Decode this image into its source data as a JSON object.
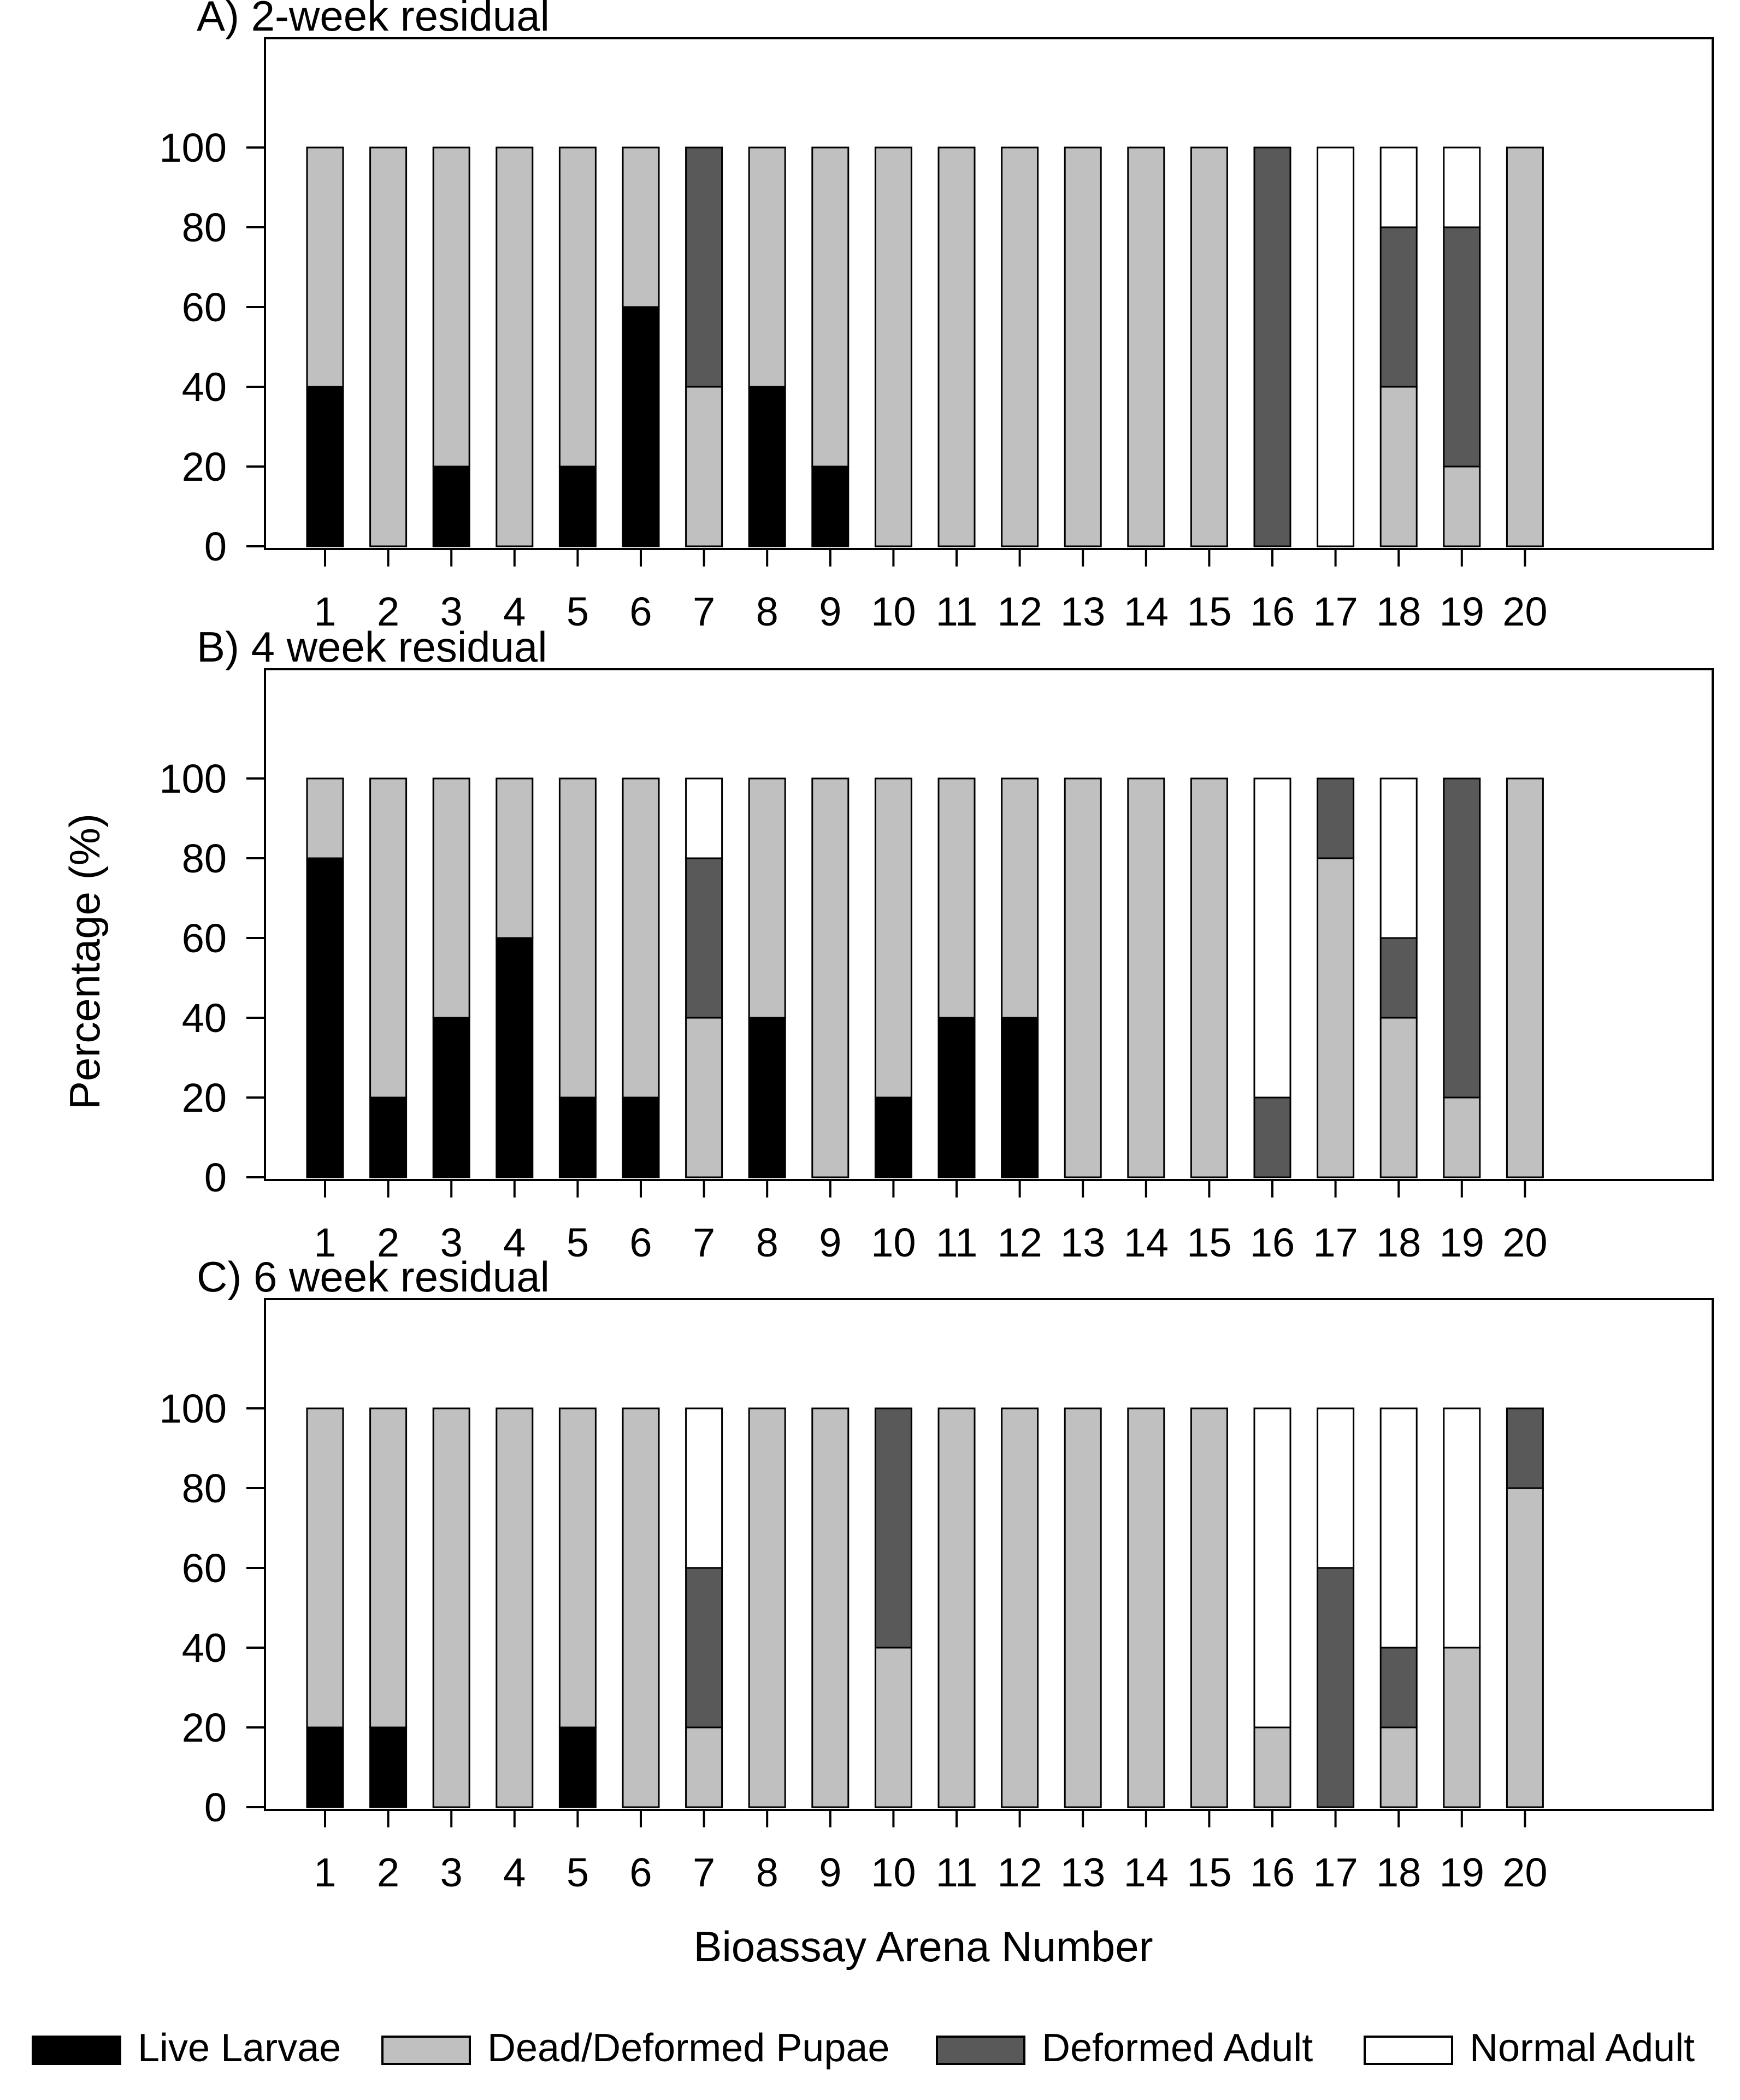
{
  "y_axis_label": "Percentage (%)",
  "x_axis_label": "Bioassay Arena Number",
  "colors": {
    "Live Larvae": "#000000",
    "Dead/Deformed Pupae": "#c0c0c0",
    "Deformed Adult": "#595959",
    "Normal Adult": "#ffffff"
  },
  "legend": {
    "placement": "bottom",
    "items": [
      "Live Larvae",
      "Dead/Deformed Pupae",
      "Deformed Adult",
      "Normal Adult"
    ]
  },
  "chart_data": [
    {
      "type": "bar",
      "stacked": true,
      "title": "A) 2-week residual",
      "categories": [
        "1",
        "2",
        "3",
        "4",
        "5",
        "6",
        "7",
        "8",
        "9",
        "10",
        "11",
        "12",
        "13",
        "14",
        "15",
        "16",
        "17",
        "18",
        "19",
        "20"
      ],
      "ylim": [
        0,
        120
      ],
      "yticks": [
        0,
        20,
        40,
        60,
        80,
        100
      ],
      "grid": false,
      "series": [
        {
          "name": "Live Larvae",
          "values": [
            40,
            0,
            20,
            0,
            20,
            60,
            0,
            40,
            20,
            0,
            0,
            0,
            0,
            0,
            0,
            0,
            0,
            0,
            0,
            0
          ]
        },
        {
          "name": "Dead/Deformed Pupae",
          "values": [
            60,
            100,
            80,
            100,
            80,
            40,
            40,
            60,
            80,
            100,
            100,
            100,
            100,
            100,
            100,
            0,
            0,
            40,
            20,
            100
          ]
        },
        {
          "name": "Deformed Adult",
          "values": [
            0,
            0,
            0,
            0,
            0,
            0,
            60,
            0,
            0,
            0,
            0,
            0,
            0,
            0,
            0,
            100,
            0,
            40,
            60,
            0
          ]
        },
        {
          "name": "Normal Adult",
          "values": [
            0,
            0,
            0,
            0,
            0,
            0,
            0,
            0,
            0,
            0,
            0,
            0,
            0,
            0,
            0,
            0,
            100,
            20,
            20,
            0
          ]
        }
      ]
    },
    {
      "type": "bar",
      "stacked": true,
      "title": "B) 4 week residual",
      "categories": [
        "1",
        "2",
        "3",
        "4",
        "5",
        "6",
        "7",
        "8",
        "9",
        "10",
        "11",
        "12",
        "13",
        "14",
        "15",
        "16",
        "17",
        "18",
        "19",
        "20"
      ],
      "ylim": [
        0,
        120
      ],
      "yticks": [
        0,
        20,
        40,
        60,
        80,
        100
      ],
      "grid": false,
      "series": [
        {
          "name": "Live Larvae",
          "values": [
            80,
            20,
            40,
            60,
            20,
            20,
            0,
            40,
            0,
            20,
            40,
            40,
            0,
            0,
            0,
            0,
            0,
            0,
            0,
            0
          ]
        },
        {
          "name": "Dead/Deformed Pupae",
          "values": [
            20,
            80,
            60,
            40,
            80,
            80,
            40,
            60,
            100,
            80,
            60,
            60,
            100,
            100,
            100,
            0,
            80,
            40,
            20,
            100
          ]
        },
        {
          "name": "Deformed Adult",
          "values": [
            0,
            0,
            0,
            0,
            0,
            0,
            40,
            0,
            0,
            0,
            0,
            0,
            0,
            0,
            0,
            20,
            20,
            20,
            80,
            0
          ]
        },
        {
          "name": "Normal Adult",
          "values": [
            0,
            0,
            0,
            0,
            0,
            0,
            20,
            0,
            0,
            0,
            0,
            0,
            0,
            0,
            0,
            80,
            0,
            40,
            0,
            0
          ]
        }
      ]
    },
    {
      "type": "bar",
      "stacked": true,
      "title": "C) 6 week residual",
      "categories": [
        "1",
        "2",
        "3",
        "4",
        "5",
        "6",
        "7",
        "8",
        "9",
        "10",
        "11",
        "12",
        "13",
        "14",
        "15",
        "16",
        "17",
        "18",
        "19",
        "20"
      ],
      "ylim": [
        0,
        120
      ],
      "yticks": [
        0,
        20,
        40,
        60,
        80,
        100
      ],
      "grid": false,
      "series": [
        {
          "name": "Live Larvae",
          "values": [
            20,
            20,
            0,
            0,
            20,
            0,
            0,
            0,
            0,
            0,
            0,
            0,
            0,
            0,
            0,
            0,
            0,
            0,
            0,
            0
          ]
        },
        {
          "name": "Dead/Deformed Pupae",
          "values": [
            80,
            80,
            100,
            100,
            80,
            100,
            20,
            100,
            100,
            40,
            100,
            100,
            100,
            100,
            100,
            20,
            0,
            20,
            40,
            80
          ]
        },
        {
          "name": "Deformed Adult",
          "values": [
            0,
            0,
            0,
            0,
            0,
            0,
            40,
            0,
            0,
            60,
            0,
            0,
            0,
            0,
            0,
            0,
            60,
            20,
            0,
            20
          ]
        },
        {
          "name": "Normal Adult",
          "values": [
            0,
            0,
            0,
            0,
            0,
            0,
            40,
            0,
            0,
            0,
            0,
            0,
            0,
            0,
            0,
            80,
            40,
            60,
            60,
            0
          ]
        }
      ]
    }
  ]
}
